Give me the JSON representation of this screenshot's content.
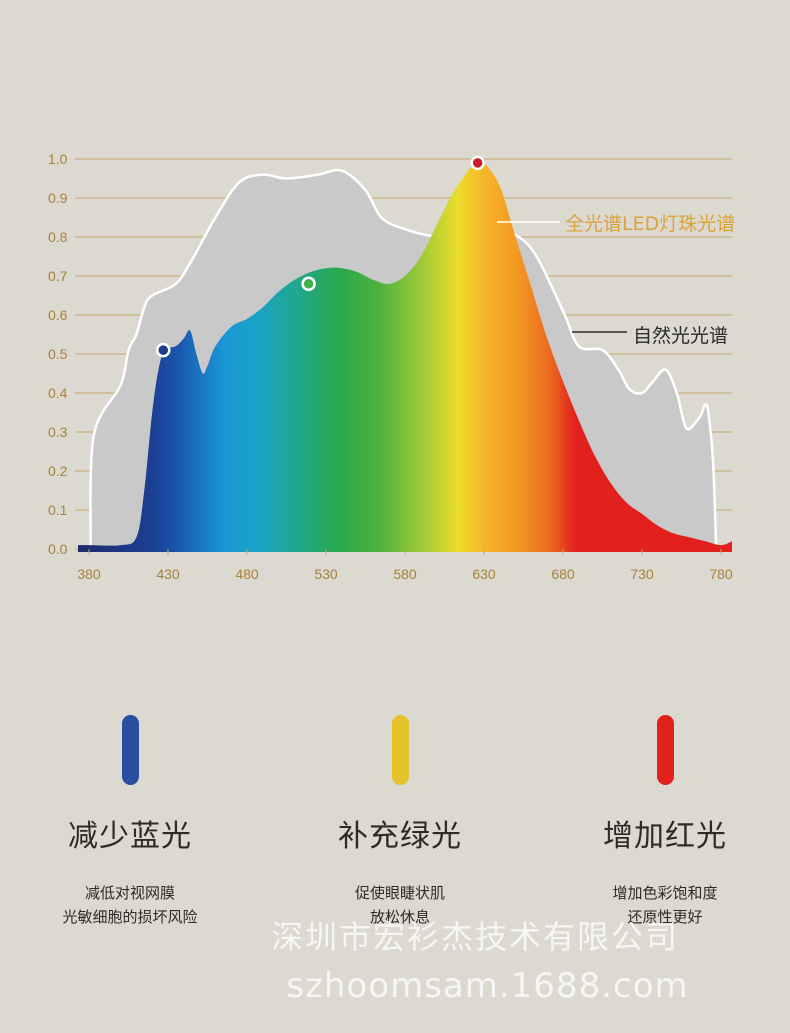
{
  "chart_data": {
    "type": "area",
    "xlabel": "",
    "ylabel": "",
    "xlim": [
      380,
      780
    ],
    "ylim": [
      0,
      1.0
    ],
    "x_ticks": [
      "380",
      "430",
      "480",
      "530",
      "580",
      "630",
      "680",
      "730",
      "780"
    ],
    "y_ticks": [
      "0.0",
      "0.1",
      "0.2",
      "0.3",
      "0.4",
      "0.5",
      "0.6",
      "0.7",
      "0.8",
      "0.9",
      "1.0"
    ],
    "grid": "horizontal",
    "series": [
      {
        "name": "自然光光谱",
        "color": "#c9c9c9",
        "points": [
          [
            381,
            0
          ],
          [
            383,
            0.29
          ],
          [
            400,
            0.42
          ],
          [
            405,
            0.51
          ],
          [
            410,
            0.55
          ],
          [
            415,
            0.62
          ],
          [
            420,
            0.65
          ],
          [
            435,
            0.68
          ],
          [
            445,
            0.74
          ],
          [
            460,
            0.85
          ],
          [
            475,
            0.94
          ],
          [
            490,
            0.96
          ],
          [
            505,
            0.95
          ],
          [
            525,
            0.96
          ],
          [
            540,
            0.97
          ],
          [
            555,
            0.92
          ],
          [
            565,
            0.85
          ],
          [
            580,
            0.82
          ],
          [
            600,
            0.8
          ],
          [
            610,
            0.8
          ],
          [
            620,
            0.82
          ],
          [
            640,
            0.82
          ],
          [
            660,
            0.77
          ],
          [
            680,
            0.61
          ],
          [
            690,
            0.52
          ],
          [
            705,
            0.51
          ],
          [
            715,
            0.46
          ],
          [
            722,
            0.41
          ],
          [
            730,
            0.4
          ],
          [
            737,
            0.43
          ],
          [
            745,
            0.46
          ],
          [
            752,
            0.4
          ],
          [
            758,
            0.31
          ],
          [
            765,
            0.33
          ],
          [
            768,
            0.35
          ],
          [
            770,
            0.37
          ],
          [
            772,
            0.35
          ],
          [
            775,
            0.22
          ],
          [
            777,
            0
          ]
        ]
      },
      {
        "name": "全光谱LED灯珠光谱",
        "color": "#e2201e",
        "points": [
          [
            380,
            0.01
          ],
          [
            400,
            0.01
          ],
          [
            410,
            0.03
          ],
          [
            415,
            0.15
          ],
          [
            420,
            0.35
          ],
          [
            424,
            0.46
          ],
          [
            428,
            0.51
          ],
          [
            435,
            0.52
          ],
          [
            440,
            0.54
          ],
          [
            444,
            0.56
          ],
          [
            448,
            0.5
          ],
          [
            452,
            0.45
          ],
          [
            455,
            0.47
          ],
          [
            460,
            0.52
          ],
          [
            470,
            0.57
          ],
          [
            480,
            0.59
          ],
          [
            490,
            0.62
          ],
          [
            500,
            0.66
          ],
          [
            510,
            0.69
          ],
          [
            520,
            0.71
          ],
          [
            530,
            0.72
          ],
          [
            540,
            0.72
          ],
          [
            550,
            0.71
          ],
          [
            560,
            0.69
          ],
          [
            570,
            0.68
          ],
          [
            580,
            0.7
          ],
          [
            590,
            0.75
          ],
          [
            600,
            0.83
          ],
          [
            610,
            0.91
          ],
          [
            620,
            0.97
          ],
          [
            625,
            0.99
          ],
          [
            630,
            0.99
          ],
          [
            640,
            0.93
          ],
          [
            650,
            0.8
          ],
          [
            660,
            0.67
          ],
          [
            670,
            0.54
          ],
          [
            680,
            0.43
          ],
          [
            690,
            0.33
          ],
          [
            700,
            0.24
          ],
          [
            710,
            0.17
          ],
          [
            720,
            0.12
          ],
          [
            730,
            0.09
          ],
          [
            740,
            0.06
          ],
          [
            750,
            0.04
          ],
          [
            760,
            0.03
          ],
          [
            770,
            0.02
          ],
          [
            780,
            0.01
          ]
        ]
      }
    ],
    "markers": [
      {
        "x": 427,
        "y": 0.51,
        "color": "#1c3a8f"
      },
      {
        "x": 519,
        "y": 0.68,
        "color": "#3fb04a"
      },
      {
        "x": 626,
        "y": 0.99,
        "color": "#c81e2a"
      }
    ],
    "annotations": [
      {
        "text": "全光谱LED灯珠光谱",
        "color": "#d9a33a"
      },
      {
        "text": "自然光光谱",
        "color": "#2b2b2b"
      }
    ]
  },
  "benefits": [
    {
      "title": "减少蓝光",
      "desc_line1": "减低对视网膜",
      "desc_line2": "光敏细胞的损坏风险",
      "color": "#2a4ea0"
    },
    {
      "title": "补充绿光",
      "desc_line1": "促使眼睫状肌",
      "desc_line2": "放松休息",
      "color": "#e6c22b"
    },
    {
      "title": "增加红光",
      "desc_line1": "增加色彩饱和度",
      "desc_line2": "还原性更好",
      "color": "#e2201e"
    }
  ],
  "watermark": {
    "company": "深圳市宏衫杰技术有限公司",
    "site": "szhoomsam.1688.com"
  }
}
